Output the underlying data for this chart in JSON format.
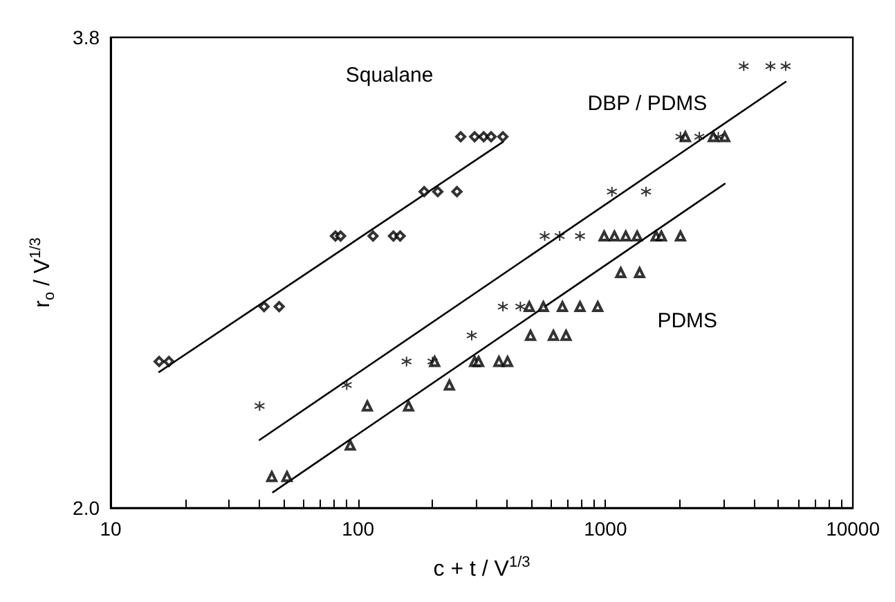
{
  "chart_data": {
    "type": "scatter",
    "xlabel": "c + t / V$^{1/3}$",
    "ylabel": "r$_{o}$ / V$^{1/3}$",
    "log": "x",
    "xlim": [
      10,
      10000
    ],
    "ylim": [
      2.0,
      3.8
    ],
    "xticks": [
      10,
      {
        "value": 20,
        "label": null
      },
      {
        "value": 30,
        "label": null
      },
      {
        "value": 40,
        "label": null
      },
      {
        "value": 50,
        "label": null
      },
      {
        "value": 60,
        "label": null
      },
      {
        "value": 70,
        "label": null
      },
      {
        "value": 80,
        "label": null
      },
      {
        "value": 90,
        "label": null
      },
      100,
      {
        "value": 200,
        "label": null
      },
      {
        "value": 300,
        "label": null
      },
      {
        "value": 400,
        "label": null
      },
      {
        "value": 500,
        "label": null
      },
      {
        "value": 600,
        "label": null
      },
      {
        "value": 700,
        "label": null
      },
      {
        "value": 800,
        "label": null
      },
      {
        "value": 900,
        "label": null
      },
      1000,
      {
        "value": 2000,
        "label": null
      },
      {
        "value": 3000,
        "label": null
      },
      {
        "value": 4000,
        "label": null
      },
      {
        "value": 5000,
        "label": null
      },
      {
        "value": 6000,
        "label": null
      },
      {
        "value": 7000,
        "label": null
      },
      {
        "value": 8000,
        "label": null
      },
      {
        "value": 9000,
        "label": null
      },
      10000
    ],
    "yticks": [
      {
        "value": 2.0,
        "label": "2.0"
      },
      {
        "value": 3.8,
        "label": "3.8"
      }
    ],
    "grid": false,
    "legend": false,
    "series": [
      {
        "name": "Squalane",
        "color": "#000000",
        "marker": "diamond",
        "x": [
          15.7,
          17.2,
          41.7,
          48,
          81,
          85,
          115,
          139,
          148,
          185,
          210,
          251,
          260,
          296,
          322,
          345,
          385
        ],
        "values": [
          2.56,
          2.56,
          2.77,
          2.77,
          3.04,
          3.04,
          3.04,
          3.04,
          3.04,
          3.21,
          3.21,
          3.21,
          3.42,
          3.42,
          3.42,
          3.42,
          3.42
        ]
      },
      {
        "name": "DBP / PDMS",
        "color": "#000000",
        "marker": "cross",
        "x": [
          40,
          90,
          157,
          200,
          288,
          385,
          453,
          568,
          653,
          789,
          1062,
          1459,
          2010,
          2396,
          2858,
          3622,
          4645,
          5350
        ],
        "values": [
          2.39,
          2.47,
          2.56,
          2.56,
          2.66,
          2.77,
          2.77,
          3.04,
          3.04,
          3.04,
          3.21,
          3.21,
          3.42,
          3.42,
          3.42,
          3.69,
          3.69,
          3.69
        ]
      },
      {
        "name": "PDMS",
        "color": "#000000",
        "marker": "triangle",
        "x": [
          44.8,
          51.6,
          93,
          109,
          160,
          204,
          234,
          296,
          307,
          371,
          402,
          498,
          616,
          693,
          492,
          561,
          670,
          789,
          931,
          1153,
          1374,
          988,
          1087,
          1208,
          1343,
          1603,
          1683,
          2010,
          2104,
          2729,
          3034
        ],
        "values": [
          2.12,
          2.12,
          2.24,
          2.39,
          2.39,
          2.56,
          2.47,
          2.56,
          2.56,
          2.56,
          2.56,
          2.66,
          2.66,
          2.66,
          2.77,
          2.77,
          2.77,
          2.77,
          2.77,
          2.9,
          2.9,
          3.04,
          3.04,
          3.04,
          3.04,
          3.04,
          3.04,
          3.04,
          3.42,
          3.42,
          3.42
        ]
      },
      {
        "type": "line",
        "color": "#000000",
        "marker": "none",
        "x": [
          15.7,
          385
        ],
        "values": [
          2.52,
          3.4
        ]
      },
      {
        "type": "line",
        "color": "#000000",
        "marker": "none",
        "x": [
          40,
          5350
        ],
        "values": [
          2.26,
          3.63
        ]
      },
      {
        "type": "line",
        "color": "#000000",
        "marker": "none",
        "x": [
          45.3,
          3034
        ],
        "values": [
          2.06,
          3.24
        ]
      }
    ]
  }
}
